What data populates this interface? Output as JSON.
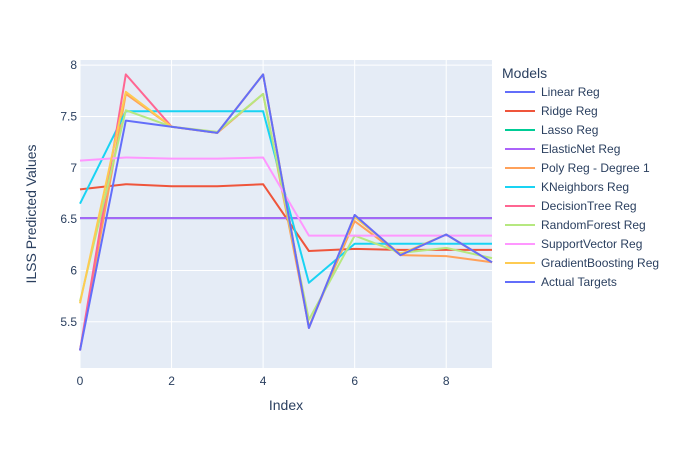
{
  "chart_data": {
    "type": "line",
    "title": "",
    "xlabel": "Index",
    "ylabel": "ILSS Predicted Values",
    "xlim": [
      0,
      9
    ],
    "ylim": [
      5.05,
      8.05
    ],
    "x_ticks": [
      0,
      2,
      4,
      6,
      8
    ],
    "y_ticks": [
      5.5,
      6,
      6.5,
      7,
      7.5,
      8
    ],
    "y_tick_labels": [
      "5.5",
      "6",
      "6.5",
      "7",
      "7.5",
      "8"
    ],
    "grid": true,
    "legend_title": "Models",
    "legend_position": "right",
    "x": [
      0,
      1,
      2,
      3,
      4,
      5,
      6,
      7,
      8,
      9
    ],
    "series": [
      {
        "name": "Linear Reg",
        "color": "#636efa",
        "values": [
          6.51,
          6.51,
          6.51,
          6.51,
          6.51,
          6.51,
          6.51,
          6.51,
          6.51,
          6.51
        ]
      },
      {
        "name": "Ridge Reg",
        "color": "#EF553B",
        "values": [
          6.79,
          6.84,
          6.82,
          6.82,
          6.84,
          6.19,
          6.21,
          6.2,
          6.2,
          6.2
        ]
      },
      {
        "name": "Lasso Reg",
        "color": "#00cc96",
        "values": [
          6.51,
          6.51,
          6.51,
          6.51,
          6.51,
          6.51,
          6.51,
          6.51,
          6.51,
          6.51
        ]
      },
      {
        "name": "ElasticNet Reg",
        "color": "#ab63fa",
        "values": [
          6.51,
          6.51,
          6.51,
          6.51,
          6.51,
          6.51,
          6.51,
          6.51,
          6.51,
          6.51
        ]
      },
      {
        "name": "Poly Reg - Degree 1",
        "color": "#FFA15A",
        "values": [
          5.22,
          7.72,
          7.4,
          7.34,
          7.72,
          5.45,
          6.48,
          6.15,
          6.14,
          6.08
        ]
      },
      {
        "name": "KNeighbors Reg",
        "color": "#19d3f3",
        "values": [
          6.65,
          7.55,
          7.55,
          7.55,
          7.55,
          5.88,
          6.26,
          6.26,
          6.26,
          6.26
        ]
      },
      {
        "name": "DecisionTree Reg",
        "color": "#FF6692",
        "values": [
          5.22,
          7.91,
          7.4,
          7.34,
          7.91,
          5.44,
          6.54,
          6.15,
          6.35,
          6.08
        ]
      },
      {
        "name": "RandomForest Reg",
        "color": "#B6E880",
        "values": [
          5.7,
          7.56,
          7.4,
          7.35,
          7.72,
          5.52,
          6.34,
          6.17,
          6.22,
          6.12
        ]
      },
      {
        "name": "SupportVector Reg",
        "color": "#FF97FF",
        "values": [
          7.07,
          7.1,
          7.09,
          7.09,
          7.1,
          6.34,
          6.34,
          6.34,
          6.34,
          6.34
        ]
      },
      {
        "name": "GradientBoosting Reg",
        "color": "#FECB52",
        "values": [
          5.68,
          7.74,
          7.4,
          7.34,
          7.91,
          5.45,
          6.52,
          6.16,
          6.35,
          6.08
        ]
      },
      {
        "name": "Actual Targets",
        "color": "#636efa",
        "values": [
          5.22,
          7.46,
          7.4,
          7.34,
          7.91,
          5.44,
          6.54,
          6.15,
          6.35,
          6.08
        ]
      }
    ]
  }
}
